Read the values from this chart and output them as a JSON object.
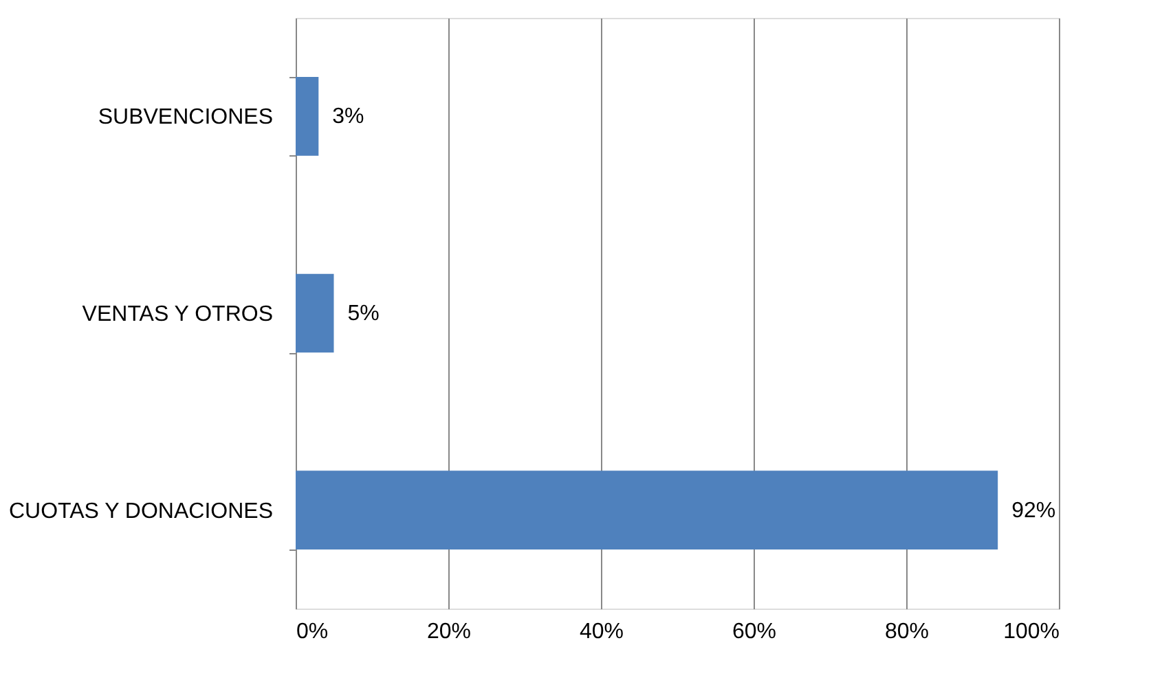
{
  "chart_data": {
    "type": "bar",
    "orientation": "horizontal",
    "categories": [
      "SUBVENCIONES",
      "VENTAS Y OTROS",
      "CUOTAS Y DONACIONES"
    ],
    "values": [
      3,
      5,
      92
    ],
    "color": "#4f81bd",
    "value_labels": [
      "3%",
      "5%",
      "92%"
    ],
    "xlim": [
      0,
      100
    ],
    "xticks": [
      {
        "value": 0,
        "label": "0%"
      },
      {
        "value": 20,
        "label": "20%"
      },
      {
        "value": 40,
        "label": "40%"
      },
      {
        "value": 60,
        "label": "60%"
      },
      {
        "value": 80,
        "label": "80%"
      },
      {
        "value": 100,
        "label": "100%"
      }
    ],
    "grid": "x"
  }
}
